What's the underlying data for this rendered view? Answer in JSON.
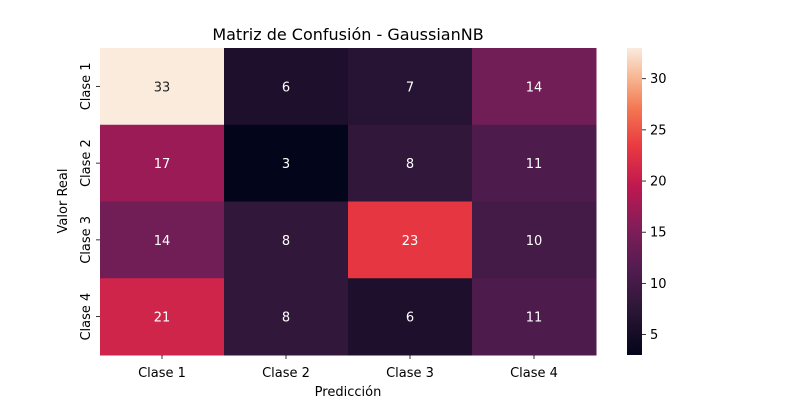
{
  "chart_data": {
    "type": "heatmap",
    "title": "Matriz de Confusión - GaussianNB",
    "xlabel": "Predicción",
    "ylabel": "Valor Real",
    "x_categories": [
      "Clase 1",
      "Clase 2",
      "Clase 3",
      "Clase 4"
    ],
    "y_categories": [
      "Clase 1",
      "Clase 2",
      "Clase 3",
      "Clase 4"
    ],
    "values": [
      [
        33,
        6,
        7,
        14
      ],
      [
        17,
        3,
        8,
        11
      ],
      [
        14,
        8,
        23,
        10
      ],
      [
        21,
        8,
        6,
        11
      ]
    ],
    "colorbar": {
      "min": 3,
      "max": 33,
      "ticks": [
        5,
        10,
        15,
        20,
        25,
        30
      ]
    },
    "colormap": "rocket"
  }
}
